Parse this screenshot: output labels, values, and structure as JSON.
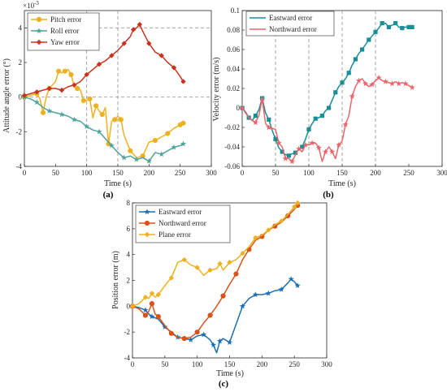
{
  "colors": {
    "pitch": "#EDB120",
    "roll": "#4FA39A",
    "yaw": "#C8321E",
    "v_east": "#1A8E96",
    "v_north": "#E8656A",
    "p_east": "#1D6EB0",
    "p_north": "#D95319",
    "p_plane": "#EDB120",
    "dashed": "#9a9a9a"
  },
  "chart_data": [
    {
      "id": "a",
      "type": "line",
      "caption": "(a)",
      "xlabel": "Time (s)",
      "ylabel": "Attitude angle error (°)",
      "exponent": "×10",
      "exponent_power": "-3",
      "xlim": [
        0,
        300
      ],
      "ylim": [
        -4,
        5
      ],
      "xticks": [
        "0",
        "50",
        "100",
        "150",
        "200",
        "250",
        "300"
      ],
      "yticks": [
        "-4",
        "-2",
        "0",
        "2",
        "4"
      ],
      "xtick_values": [
        0,
        50,
        100,
        150,
        200,
        250,
        300
      ],
      "ytick_values": [
        -4,
        -2,
        0,
        2,
        4
      ],
      "ref_vlines": [
        100,
        150
      ],
      "ref_hlines": [
        0,
        4
      ],
      "legend_position": "top-left",
      "series": [
        {
          "name": "Pitch error",
          "color_key": "pitch",
          "marker": "circle",
          "x": [
            0,
            10,
            20,
            25,
            30,
            35,
            40,
            50,
            55,
            60,
            65,
            70,
            75,
            80,
            85,
            90,
            95,
            100,
            105,
            110,
            115,
            120,
            125,
            130,
            135,
            140,
            145,
            150,
            155,
            160,
            170,
            180,
            190,
            200,
            210,
            220,
            230,
            240,
            250,
            255
          ],
          "y": [
            0,
            0.1,
            0.2,
            -0.1,
            -0.9,
            0,
            0.5,
            0.9,
            1.5,
            1.4,
            1.5,
            1.6,
            1.3,
            0.6,
            0.5,
            0.4,
            -0.2,
            -0.2,
            -0.1,
            -1.2,
            -0.5,
            -0.8,
            -1.0,
            -0.6,
            -2.7,
            -1.4,
            -1.3,
            -1.1,
            -1.3,
            -2.2,
            -3.1,
            -3.5,
            -3.4,
            -2.6,
            -2.5,
            -2.3,
            -2.1,
            -1.8,
            -1.6,
            -1.5
          ]
        },
        {
          "name": "Roll error",
          "color_key": "roll",
          "marker": "star",
          "x": [
            0,
            10,
            20,
            30,
            40,
            50,
            60,
            70,
            80,
            90,
            100,
            110,
            120,
            130,
            140,
            150,
            160,
            170,
            180,
            190,
            200,
            210,
            220,
            230,
            240,
            250,
            255
          ],
          "y": [
            0,
            -0.1,
            -0.3,
            -0.6,
            -0.8,
            -0.9,
            -1.0,
            -1.1,
            -1.3,
            -1.4,
            -1.7,
            -1.9,
            -2.0,
            -2.4,
            -2.8,
            -3.2,
            -3.5,
            -3.4,
            -3.6,
            -3.5,
            -3.7,
            -3.2,
            -3.3,
            -3.1,
            -2.9,
            -2.8,
            -2.7
          ]
        },
        {
          "name": "Yaw error",
          "color_key": "yaw",
          "marker": "diamond",
          "x": [
            0,
            10,
            20,
            30,
            40,
            50,
            60,
            70,
            80,
            90,
            100,
            110,
            120,
            130,
            140,
            150,
            160,
            170,
            175,
            180,
            185,
            190,
            200,
            210,
            220,
            230,
            240,
            250,
            255
          ],
          "y": [
            0.1,
            0.2,
            0.3,
            0.4,
            0.5,
            0.5,
            0.4,
            0.6,
            0.7,
            0.9,
            1.3,
            1.6,
            1.9,
            2.1,
            2.4,
            2.7,
            3.1,
            3.5,
            3.9,
            4.0,
            4.2,
            3.8,
            3.1,
            2.6,
            2.4,
            2.0,
            1.7,
            1.2,
            0.9
          ]
        }
      ]
    },
    {
      "id": "b",
      "type": "line",
      "caption": "(b)",
      "xlabel": "Time (s)",
      "ylabel": "Velocity error (m/s)",
      "xlim": [
        0,
        300
      ],
      "ylim": [
        -0.06,
        0.1
      ],
      "xticks": [
        "0",
        "50",
        "100",
        "150",
        "200",
        "250",
        "300"
      ],
      "yticks": [
        "-0.06",
        "-0.04",
        "-0.02",
        "0",
        "0.02",
        "0.04",
        "0.06",
        "0.08",
        "0.1"
      ],
      "xtick_values": [
        0,
        50,
        100,
        150,
        200,
        250,
        300
      ],
      "ytick_values": [
        -0.06,
        -0.04,
        -0.02,
        0,
        0.02,
        0.04,
        0.06,
        0.08,
        0.1
      ],
      "ref_vlines": [
        50,
        100,
        150,
        200
      ],
      "ref_hlines": [],
      "legend_position": "top-left",
      "series": [
        {
          "name": "Eastward error",
          "color_key": "v_east",
          "marker": "square",
          "x": [
            0,
            5,
            10,
            15,
            20,
            25,
            30,
            35,
            40,
            45,
            50,
            55,
            60,
            65,
            70,
            75,
            80,
            85,
            90,
            95,
            100,
            105,
            110,
            115,
            120,
            125,
            130,
            135,
            140,
            145,
            150,
            155,
            160,
            165,
            170,
            175,
            180,
            185,
            190,
            195,
            200,
            205,
            210,
            215,
            220,
            225,
            230,
            235,
            240,
            245,
            250,
            255
          ],
          "y": [
            0,
            -0.004,
            -0.01,
            -0.013,
            -0.008,
            -0.002,
            0.01,
            -0.005,
            -0.012,
            -0.023,
            -0.032,
            -0.041,
            -0.045,
            -0.048,
            -0.049,
            -0.047,
            -0.046,
            -0.043,
            -0.04,
            -0.032,
            -0.022,
            -0.016,
            -0.011,
            -0.01,
            -0.008,
            -0.003,
            0.0,
            0.008,
            0.016,
            0.022,
            0.026,
            0.03,
            0.036,
            0.044,
            0.05,
            0.056,
            0.06,
            0.065,
            0.07,
            0.074,
            0.078,
            0.082,
            0.087,
            0.087,
            0.083,
            0.085,
            0.087,
            0.083,
            0.082,
            0.083,
            0.083,
            0.083
          ]
        },
        {
          "name": "Northward error",
          "color_key": "v_north",
          "marker": "star",
          "x": [
            0,
            10,
            20,
            25,
            30,
            35,
            40,
            50,
            55,
            60,
            65,
            70,
            75,
            80,
            85,
            90,
            95,
            100,
            105,
            110,
            115,
            120,
            125,
            130,
            135,
            140,
            145,
            150,
            155,
            160,
            165,
            170,
            175,
            180,
            185,
            190,
            195,
            200,
            205,
            210,
            215,
            220,
            225,
            230,
            235,
            240,
            245,
            250,
            255
          ],
          "y": [
            0,
            -0.01,
            -0.015,
            -0.008,
            0.009,
            -0.016,
            -0.02,
            -0.022,
            -0.036,
            -0.04,
            -0.052,
            -0.052,
            -0.055,
            -0.048,
            -0.042,
            -0.045,
            -0.038,
            -0.038,
            -0.036,
            -0.036,
            -0.041,
            -0.055,
            -0.045,
            -0.04,
            -0.045,
            -0.052,
            -0.038,
            -0.034,
            -0.017,
            -0.008,
            0.012,
            0.022,
            0.028,
            0.03,
            0.025,
            0.022,
            0.024,
            0.028,
            0.031,
            0.028,
            0.027,
            0.026,
            0.025,
            0.027,
            0.025,
            0.026,
            0.025,
            0.023,
            0.021
          ]
        }
      ]
    },
    {
      "id": "c",
      "type": "line",
      "caption": "(c)",
      "xlabel": "Time (s)",
      "ylabel": "Position error (m)",
      "xlim": [
        0,
        300
      ],
      "ylim": [
        -4,
        8
      ],
      "xticks": [
        "0",
        "50",
        "100",
        "150",
        "200",
        "250",
        "300"
      ],
      "yticks": [
        "-4",
        "-2",
        "0",
        "2",
        "4",
        "6",
        "8"
      ],
      "xtick_values": [
        0,
        50,
        100,
        150,
        200,
        250,
        300
      ],
      "ytick_values": [
        -4,
        -2,
        0,
        2,
        4,
        6,
        8
      ],
      "ref_vlines": [],
      "ref_hlines": [],
      "legend_position": "top-left",
      "series": [
        {
          "name": "Eastward error",
          "color_key": "p_east",
          "marker": "star",
          "x": [
            0,
            10,
            20,
            25,
            30,
            40,
            50,
            60,
            70,
            80,
            90,
            100,
            110,
            120,
            125,
            130,
            135,
            140,
            150,
            160,
            170,
            180,
            190,
            200,
            210,
            220,
            230,
            240,
            245,
            250,
            255
          ],
          "y": [
            0,
            -0.1,
            -0.3,
            -0.6,
            -0.8,
            -1.0,
            -1.6,
            -2.0,
            -2.4,
            -2.5,
            -2.6,
            -2.3,
            -2.2,
            -2.6,
            -3.0,
            -3.6,
            -2.7,
            -2.5,
            -2.8,
            -1.4,
            0.0,
            0.6,
            0.9,
            0.9,
            1.0,
            1.2,
            1.3,
            1.8,
            2.1,
            1.9,
            1.6
          ]
        },
        {
          "name": "Northward error",
          "color_key": "p_north",
          "marker": "circle",
          "x": [
            0,
            10,
            20,
            25,
            30,
            35,
            40,
            50,
            60,
            70,
            80,
            90,
            100,
            110,
            120,
            130,
            140,
            150,
            160,
            170,
            180,
            190,
            200,
            210,
            220,
            230,
            240,
            250,
            255
          ],
          "y": [
            0,
            -0.2,
            -0.7,
            -0.4,
            0.2,
            -0.6,
            -0.8,
            -1.5,
            -2.1,
            -2.4,
            -2.5,
            -2.4,
            -2.0,
            -1.3,
            -0.7,
            0.0,
            0.8,
            1.7,
            2.5,
            3.6,
            4.4,
            5.1,
            5.4,
            5.9,
            6.2,
            6.5,
            7.0,
            7.5,
            7.8
          ]
        },
        {
          "name": "Plane error",
          "color_key": "p_plane",
          "marker": "diamond",
          "x": [
            0,
            10,
            20,
            25,
            30,
            35,
            40,
            50,
            60,
            70,
            80,
            90,
            100,
            110,
            120,
            130,
            135,
            140,
            150,
            160,
            170,
            180,
            190,
            200,
            210,
            220,
            230,
            240,
            250,
            255
          ],
          "y": [
            0,
            0.2,
            0.7,
            0.6,
            1.0,
            0.7,
            0.9,
            1.6,
            2.2,
            3.4,
            3.6,
            3.2,
            3.0,
            2.4,
            2.8,
            2.9,
            3.3,
            2.8,
            3.4,
            3.6,
            4.1,
            4.6,
            5.3,
            5.5,
            5.9,
            6.3,
            6.6,
            7.1,
            7.7,
            8.0
          ]
        }
      ]
    }
  ]
}
